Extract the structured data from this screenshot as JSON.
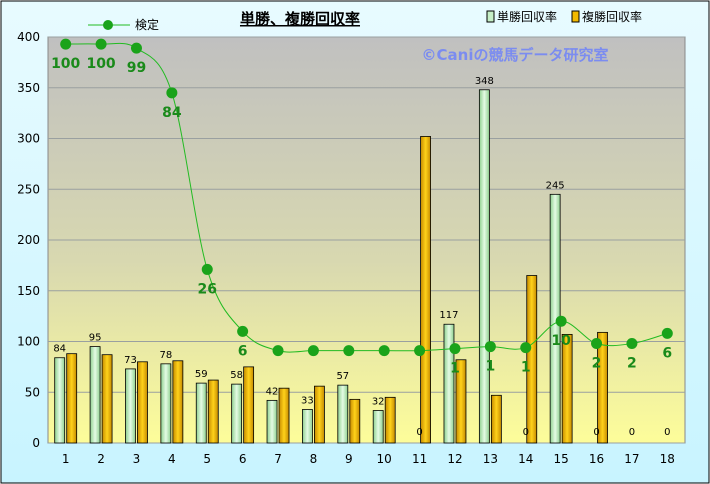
{
  "chart_data": {
    "type": "bar",
    "title": "単勝、複勝回収率",
    "watermark": "©Caniの競馬データ研究室",
    "categories": [
      "1",
      "2",
      "3",
      "4",
      "5",
      "6",
      "7",
      "8",
      "9",
      "10",
      "11",
      "12",
      "13",
      "14",
      "15",
      "16",
      "17",
      "18"
    ],
    "ylim": [
      0,
      400
    ],
    "yticks": [
      0,
      50,
      100,
      150,
      200,
      250,
      300,
      350,
      400
    ],
    "grid": true,
    "legend_position": "top",
    "series": [
      {
        "name": "単勝回収率",
        "color": "#c6efc6",
        "values": [
          84,
          95,
          73,
          78,
          59,
          58,
          42,
          33,
          57,
          32,
          0,
          117,
          348,
          0,
          245,
          0,
          0,
          0
        ],
        "labels": [
          "84",
          "95",
          "73",
          "78",
          "59",
          "58",
          "42",
          "33",
          "57",
          "32",
          "0",
          "117",
          "348",
          "0",
          "245",
          "0",
          "0",
          "0"
        ]
      },
      {
        "name": "複勝回収率",
        "color": "#f2b900",
        "values": [
          88,
          87,
          80,
          81,
          62,
          75,
          54,
          56,
          43,
          45,
          302,
          82,
          47,
          165,
          107,
          109,
          0,
          0
        ]
      }
    ],
    "line_series": {
      "name": "検定",
      "color": "#22bb22",
      "values": [
        393,
        393,
        389,
        345,
        171,
        110,
        91,
        91,
        91,
        91,
        91,
        93,
        95,
        94,
        120,
        98,
        98,
        108
      ],
      "labels": [
        "100",
        "100",
        "99",
        "84",
        "26",
        "6",
        "",
        "",
        "",
        "",
        "",
        "1",
        "1",
        "1",
        "10",
        "2",
        "2",
        "6"
      ]
    }
  }
}
